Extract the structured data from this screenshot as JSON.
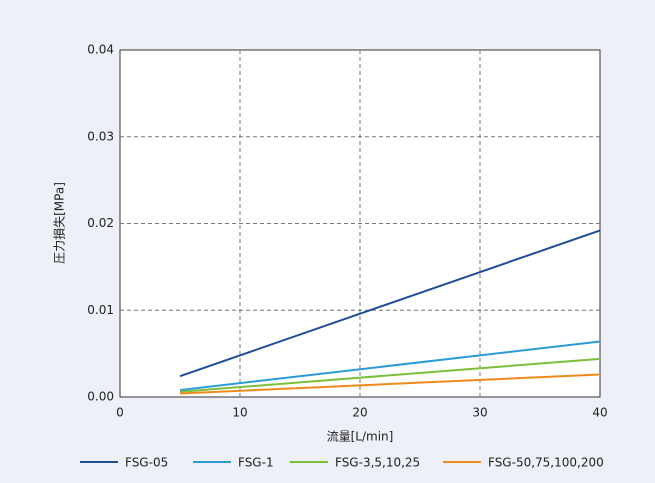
{
  "chart_data": {
    "type": "line",
    "x_label": "流量[L/min]",
    "y_label": "圧力損失[MPa]",
    "xlim": [
      0,
      40
    ],
    "xticks": [
      0,
      10,
      20,
      30,
      40
    ],
    "ylim": [
      0,
      0.04
    ],
    "yticks": [
      {
        "value": 0,
        "label": "0.00"
      },
      0.01,
      0.02,
      0.03,
      0.04
    ],
    "grid": true,
    "legend": "bottom",
    "series": [
      {
        "name": "FSG-05",
        "color": "#1f4e96",
        "x": [
          5,
          40
        ],
        "values": [
          0.0024,
          0.0192
        ]
      },
      {
        "name": "FSG-1",
        "color": "#2b9bd8",
        "x": [
          5,
          40
        ],
        "values": [
          0.0008,
          0.0064
        ]
      },
      {
        "name": "FSG-3,5,10,25",
        "color": "#7cbf3a",
        "x": [
          5,
          40
        ],
        "values": [
          0.0006,
          0.0044
        ]
      },
      {
        "name": "FSG-50,75,100,200",
        "color": "#f08a1e",
        "x": [
          5,
          40
        ],
        "values": [
          0.0004,
          0.0026
        ]
      }
    ]
  }
}
